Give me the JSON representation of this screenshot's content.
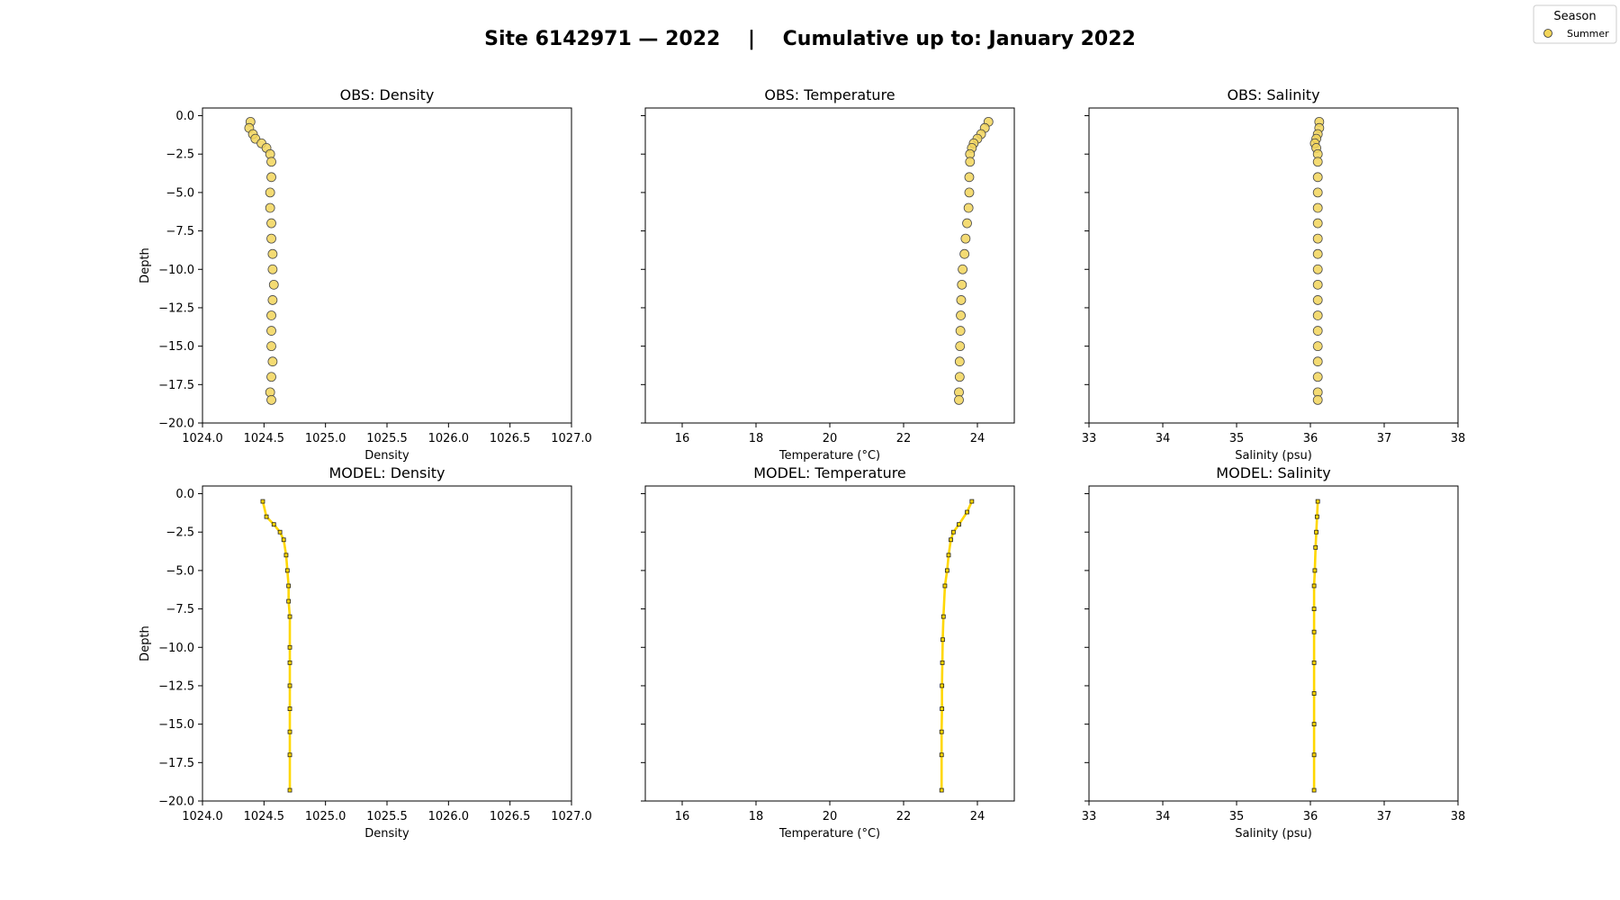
{
  "figure": {
    "title": "Site 6142971 — 2022    |    Cumulative up to: January 2022",
    "legend": {
      "title": "Season",
      "entries": [
        {
          "label": "Summer",
          "color": "#f2d55a"
        }
      ],
      "placement": "top-right"
    }
  },
  "chart_data": [
    {
      "type": "scatter",
      "title": "OBS: Density",
      "xlabel": "Density",
      "ylabel": "Depth",
      "xlim": [
        1024.0,
        1027.0
      ],
      "ylim": [
        -20.0,
        0.5
      ],
      "xticks": [
        "1024.0",
        "1025.0",
        "1026.0",
        "1027.0",
        "1024.5",
        "1025.5",
        "1026.5"
      ],
      "xtick_values": [
        1024.0,
        1025.0,
        1026.0,
        1027.0,
        1024.5,
        1025.5,
        1026.5
      ],
      "yticks": [
        "0.0",
        "−2.5",
        "−5.0",
        "−7.5",
        "−10.0",
        "−12.5",
        "−15.0",
        "−17.5",
        "−20.0"
      ],
      "ytick_values": [
        0,
        -2.5,
        -5,
        -7.5,
        -10,
        -12.5,
        -15,
        -17.5,
        -20
      ],
      "show_ytick_labels": true,
      "grid": false,
      "series": [
        {
          "name": "Summer",
          "color": "#f2d55a",
          "x": [
            1024.39,
            1024.38,
            1024.41,
            1024.43,
            1024.48,
            1024.52,
            1024.55,
            1024.56,
            1024.56,
            1024.55,
            1024.55,
            1024.56,
            1024.56,
            1024.57,
            1024.57,
            1024.58,
            1024.57,
            1024.56,
            1024.56,
            1024.56,
            1024.57,
            1024.56,
            1024.55,
            1024.56
          ],
          "y": [
            -0.4,
            -0.8,
            -1.2,
            -1.5,
            -1.8,
            -2.1,
            -2.5,
            -3.0,
            -4.0,
            -5.0,
            -6.0,
            -7.0,
            -8.0,
            -9.0,
            -10.0,
            -11.0,
            -12.0,
            -13.0,
            -14.0,
            -15.0,
            -16.0,
            -17.0,
            -18.0,
            -18.5
          ]
        }
      ]
    },
    {
      "type": "scatter",
      "title": "OBS: Temperature",
      "xlabel": "Temperature (°C)",
      "ylabel": "",
      "xlim": [
        15.0,
        25.0
      ],
      "ylim": [
        -20.0,
        0.5
      ],
      "xticks": [
        "16",
        "18",
        "20",
        "22",
        "24"
      ],
      "xtick_values": [
        16,
        18,
        20,
        22,
        24
      ],
      "yticks": [],
      "ytick_values": [
        0,
        -2.5,
        -5,
        -7.5,
        -10,
        -12.5,
        -15,
        -17.5,
        -20
      ],
      "show_ytick_labels": false,
      "grid": false,
      "series": [
        {
          "name": "Summer",
          "color": "#f2d55a",
          "x": [
            24.3,
            24.2,
            24.1,
            24.0,
            23.9,
            23.85,
            23.8,
            23.8,
            23.78,
            23.78,
            23.76,
            23.72,
            23.68,
            23.65,
            23.6,
            23.58,
            23.56,
            23.55,
            23.54,
            23.53,
            23.52,
            23.52,
            23.5,
            23.5
          ],
          "y": [
            -0.4,
            -0.8,
            -1.2,
            -1.5,
            -1.8,
            -2.1,
            -2.5,
            -3.0,
            -4.0,
            -5.0,
            -6.0,
            -7.0,
            -8.0,
            -9.0,
            -10.0,
            -11.0,
            -12.0,
            -13.0,
            -14.0,
            -15.0,
            -16.0,
            -17.0,
            -18.0,
            -18.5
          ]
        }
      ]
    },
    {
      "type": "scatter",
      "title": "OBS: Salinity",
      "xlabel": "Salinity (psu)",
      "ylabel": "",
      "xlim": [
        33.0,
        38.0
      ],
      "ylim": [
        -20.0,
        0.5
      ],
      "xticks": [
        "33",
        "34",
        "35",
        "36",
        "37",
        "38"
      ],
      "xtick_values": [
        33,
        34,
        35,
        36,
        37,
        38
      ],
      "yticks": [],
      "ytick_values": [
        0,
        -2.5,
        -5,
        -7.5,
        -10,
        -12.5,
        -15,
        -17.5,
        -20
      ],
      "show_ytick_labels": false,
      "grid": false,
      "series": [
        {
          "name": "Summer",
          "color": "#f2d55a",
          "x": [
            36.12,
            36.12,
            36.1,
            36.08,
            36.06,
            36.08,
            36.1,
            36.1,
            36.1,
            36.1,
            36.1,
            36.1,
            36.1,
            36.1,
            36.1,
            36.1,
            36.1,
            36.1,
            36.1,
            36.1,
            36.1,
            36.1,
            36.1,
            36.1
          ],
          "y": [
            -0.4,
            -0.8,
            -1.2,
            -1.5,
            -1.8,
            -2.1,
            -2.5,
            -3.0,
            -4.0,
            -5.0,
            -6.0,
            -7.0,
            -8.0,
            -9.0,
            -10.0,
            -11.0,
            -12.0,
            -13.0,
            -14.0,
            -15.0,
            -16.0,
            -17.0,
            -18.0,
            -18.5
          ]
        }
      ]
    },
    {
      "type": "line",
      "title": "MODEL: Density",
      "xlabel": "Density",
      "ylabel": "Depth",
      "xlim": [
        1024.0,
        1027.0
      ],
      "ylim": [
        -20.0,
        0.5
      ],
      "xticks": [
        "1024.0",
        "1025.0",
        "1026.0",
        "1027.0",
        "1024.5",
        "1025.5",
        "1026.5"
      ],
      "xtick_values": [
        1024.0,
        1025.0,
        1026.0,
        1027.0,
        1024.5,
        1025.5,
        1026.5
      ],
      "yticks": [
        "0.0",
        "−2.5",
        "−5.0",
        "−7.5",
        "−10.0",
        "−12.5",
        "−15.0",
        "−17.5",
        "−20.0"
      ],
      "ytick_values": [
        0,
        -2.5,
        -5,
        -7.5,
        -10,
        -12.5,
        -15,
        -17.5,
        -20
      ],
      "show_ytick_labels": true,
      "grid": false,
      "series": [
        {
          "name": "Summer",
          "color": "#ffd700",
          "x": [
            1024.49,
            1024.52,
            1024.58,
            1024.63,
            1024.66,
            1024.68,
            1024.69,
            1024.7,
            1024.7,
            1024.71,
            1024.71,
            1024.71,
            1024.71,
            1024.71,
            1024.71,
            1024.71,
            1024.71
          ],
          "y": [
            -0.5,
            -1.5,
            -2.0,
            -2.5,
            -3.0,
            -4.0,
            -5.0,
            -6.0,
            -7.0,
            -8.0,
            -10.0,
            -11.0,
            -12.5,
            -14.0,
            -15.5,
            -17.0,
            -19.3
          ]
        }
      ]
    },
    {
      "type": "line",
      "title": "MODEL: Temperature",
      "xlabel": "Temperature (°C)",
      "ylabel": "",
      "xlim": [
        15.0,
        25.0
      ],
      "ylim": [
        -20.0,
        0.5
      ],
      "xticks": [
        "16",
        "18",
        "20",
        "22",
        "24"
      ],
      "xtick_values": [
        16,
        18,
        20,
        22,
        24
      ],
      "yticks": [],
      "ytick_values": [
        0,
        -2.5,
        -5,
        -7.5,
        -10,
        -12.5,
        -15,
        -17.5,
        -20
      ],
      "show_ytick_labels": false,
      "grid": false,
      "series": [
        {
          "name": "Summer",
          "color": "#ffd700",
          "x": [
            23.85,
            23.72,
            23.5,
            23.35,
            23.28,
            23.22,
            23.18,
            23.12,
            23.08,
            23.06,
            23.05,
            23.04,
            23.04,
            23.03,
            23.03,
            23.03
          ],
          "y": [
            -0.5,
            -1.2,
            -2.0,
            -2.5,
            -3.0,
            -4.0,
            -5.0,
            -6.0,
            -8.0,
            -9.5,
            -11.0,
            -12.5,
            -14.0,
            -15.5,
            -17.0,
            -19.3
          ]
        }
      ]
    },
    {
      "type": "line",
      "title": "MODEL: Salinity",
      "xlabel": "Salinity (psu)",
      "ylabel": "",
      "xlim": [
        33.0,
        38.0
      ],
      "ylim": [
        -20.0,
        0.5
      ],
      "xticks": [
        "33",
        "34",
        "35",
        "36",
        "37",
        "38"
      ],
      "xtick_values": [
        33,
        34,
        35,
        36,
        37,
        38
      ],
      "yticks": [],
      "ytick_values": [
        0,
        -2.5,
        -5,
        -7.5,
        -10,
        -12.5,
        -15,
        -17.5,
        -20
      ],
      "show_ytick_labels": false,
      "grid": false,
      "series": [
        {
          "name": "Summer",
          "color": "#ffd700",
          "x": [
            36.1,
            36.09,
            36.08,
            36.07,
            36.06,
            36.05,
            36.05,
            36.05,
            36.05,
            36.05,
            36.05,
            36.05,
            36.05
          ],
          "y": [
            -0.5,
            -1.5,
            -2.5,
            -3.5,
            -5.0,
            -6.0,
            -7.5,
            -9.0,
            -11.0,
            -13.0,
            -15.0,
            -17.0,
            -19.3
          ]
        }
      ]
    }
  ]
}
